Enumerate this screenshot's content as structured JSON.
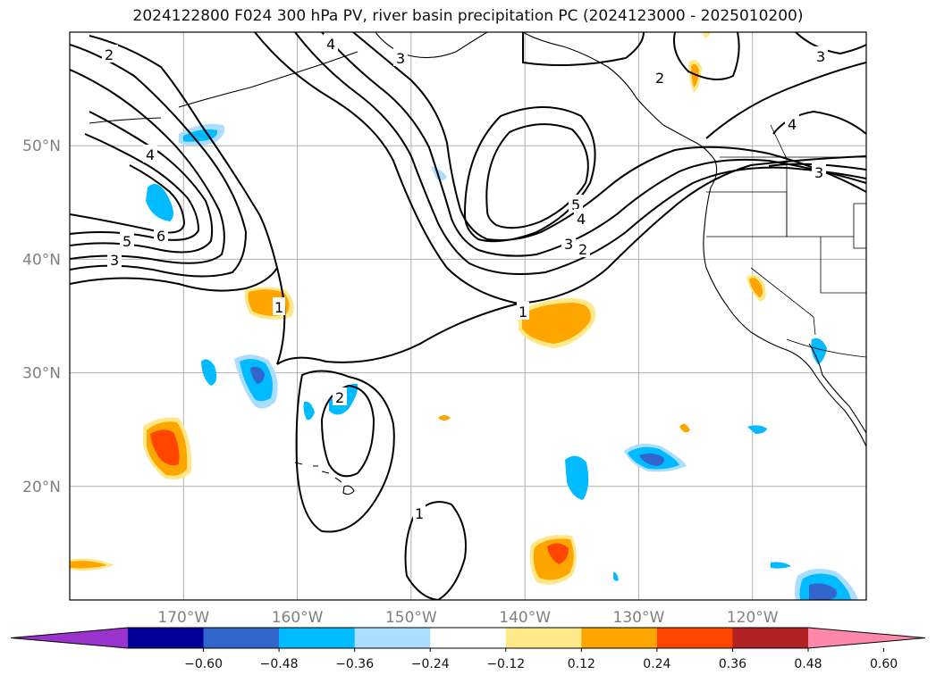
{
  "title": "2024122800 F024 300 hPa PV, river basin precipitation PC (2024123000 - 2025010200)",
  "map": {
    "lon_range": [
      -180,
      -110
    ],
    "lat_range": [
      10,
      60
    ],
    "lat_ticks": [
      "50°N",
      "40°N",
      "30°N",
      "20°N"
    ],
    "lat_values": [
      50,
      40,
      30,
      20
    ],
    "lon_ticks": [
      "170°W",
      "160°W",
      "150°W",
      "140°W",
      "130°W",
      "120°W"
    ],
    "lon_values": [
      -170,
      -160,
      -150,
      -140,
      -130,
      -120
    ],
    "grid": true
  },
  "contour_labels": [
    "2",
    "3",
    "4",
    "4",
    "5",
    "6",
    "3",
    "1",
    "2",
    "1",
    "5",
    "4",
    "3",
    "2",
    "1",
    "2",
    "3",
    "4",
    "3"
  ],
  "colorbar": {
    "colors": [
      "#9933cc",
      "#000099",
      "#3366cc",
      "#00bbff",
      "#aaddff",
      "#ffffff",
      "#ffe888",
      "#ffa500",
      "#ff4500",
      "#b22222",
      "#ff88aa"
    ],
    "labels": [
      "−0.60",
      "−0.48",
      "−0.36",
      "−0.24",
      "−0.12",
      "0.12",
      "0.24",
      "0.36",
      "0.48",
      "0.60"
    ]
  }
}
